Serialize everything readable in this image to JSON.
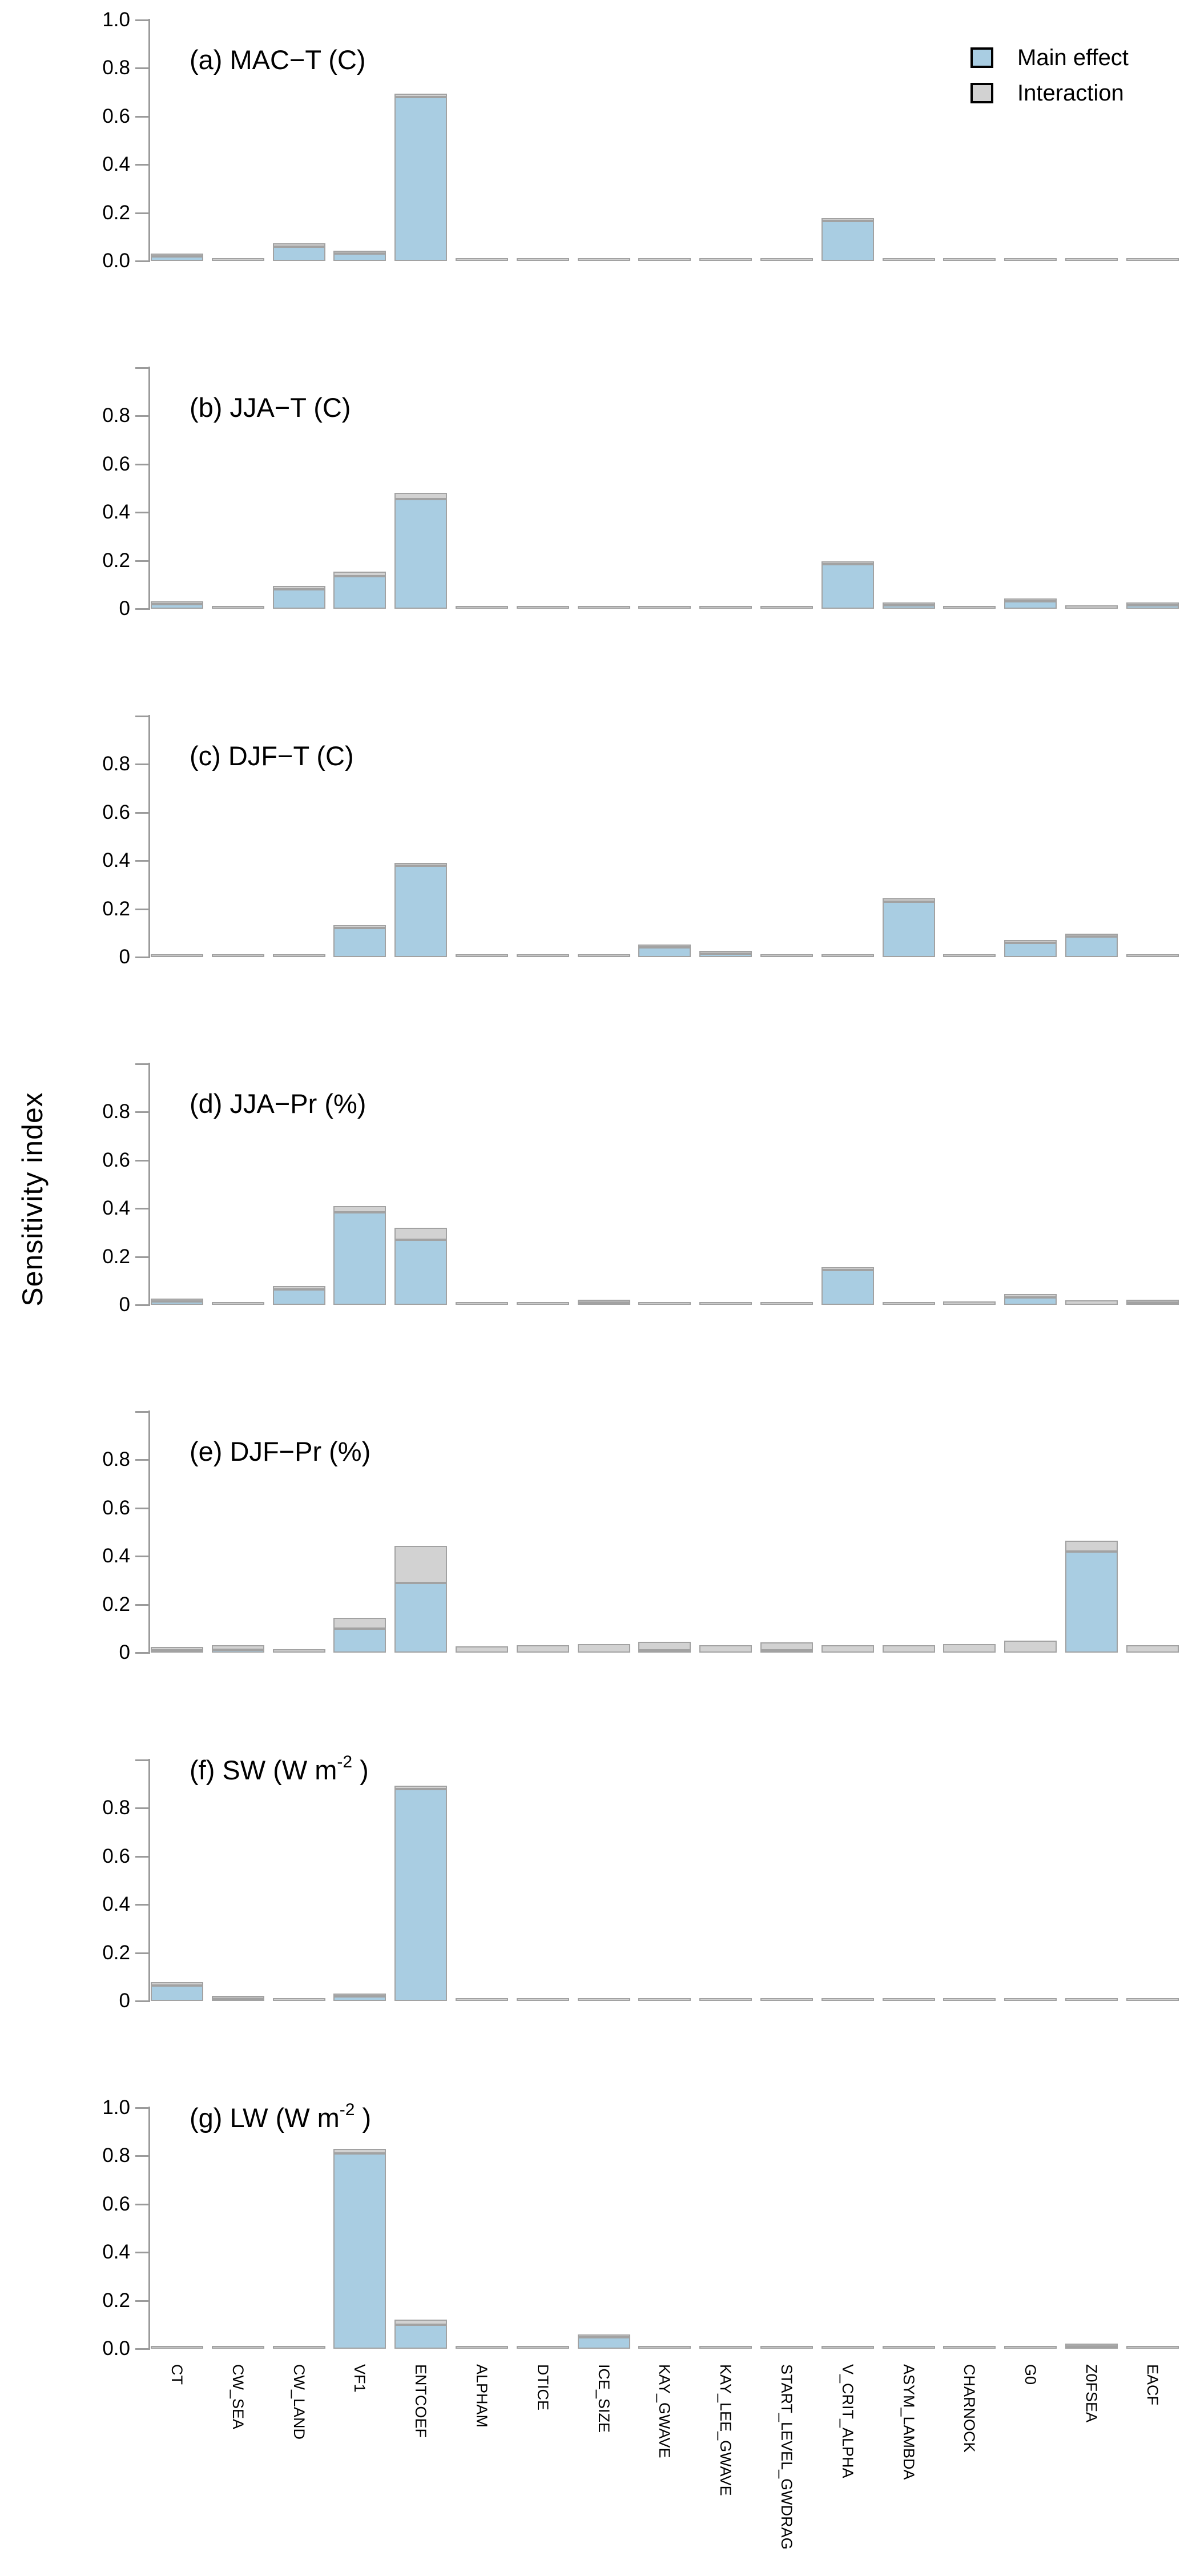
{
  "figure": {
    "y_axis_label": "Sensitivity index",
    "legend": [
      {
        "label": "Main effect",
        "color": "#a9cde2"
      },
      {
        "label": "Interaction",
        "color": "#d2d2d2"
      }
    ],
    "colors": {
      "main": "#a9cde2",
      "interaction": "#d2d2d2",
      "bar_border": "#a2a2a2",
      "axis": "#9b9b9b",
      "text": "#000000",
      "background": "#ffffff"
    }
  },
  "chart_data": {
    "type": "bar",
    "stacked": true,
    "grid": false,
    "legend_position": "top-right",
    "ylabel": "Sensitivity index",
    "series_names": [
      "Main effect",
      "Interaction"
    ],
    "categories": [
      "CT",
      "CW_SEA",
      "CW_LAND",
      "VF1",
      "ENTCOEF",
      "ALPHAM",
      "DTICE",
      "ICE_SIZE",
      "KAY_GWAVE",
      "KAY_LEE_GWAVE",
      "START_LEVEL_GWDRAG",
      "V_CRIT_ALPHA",
      "ASYM_LAMBDA",
      "CHARNOCK",
      "G0",
      "Z0FSEA",
      "EACF"
    ],
    "ylim": [
      0,
      1.0
    ],
    "tick_values": [
      0,
      0.2,
      0.4,
      0.6,
      0.8,
      1.0
    ],
    "panels": [
      {
        "id": "a",
        "title_pre": "(a) MAC−T (C)",
        "title_sup": "",
        "title_post": "",
        "title_high": false,
        "y_tick_labels": [
          "0.0",
          "0.2",
          "0.4",
          "0.6",
          "0.8",
          "1.0"
        ],
        "main": [
          0.02,
          0,
          0.06,
          0.03,
          0.68,
          0,
          0,
          0,
          0,
          0,
          0,
          0.165,
          0,
          0,
          0,
          0,
          0
        ],
        "interaction": [
          0.01,
          0.005,
          0.015,
          0.01,
          0.015,
          0.005,
          0.005,
          0.005,
          0.008,
          0.005,
          0.005,
          0.012,
          0.01,
          0.005,
          0.01,
          0.005,
          0.012
        ]
      },
      {
        "id": "b",
        "title_pre": "(b) JJA−T (C)",
        "title_sup": "",
        "title_post": "",
        "title_high": false,
        "y_tick_labels": [
          "0",
          "0.2",
          "0.4",
          "0.6",
          "0.8"
        ],
        "main": [
          0.02,
          0,
          0.08,
          0.135,
          0.455,
          0,
          0,
          0,
          0,
          0,
          0,
          0.185,
          0.015,
          0,
          0.03,
          0,
          0.015
        ],
        "interaction": [
          0.008,
          0.01,
          0.015,
          0.02,
          0.025,
          0.005,
          0.005,
          0.006,
          0.008,
          0.006,
          0.006,
          0.012,
          0.01,
          0.01,
          0.012,
          0.015,
          0.01
        ]
      },
      {
        "id": "c",
        "title_pre": "(c) DJF−T (C)",
        "title_sup": "",
        "title_post": "",
        "title_high": false,
        "y_tick_labels": [
          "0",
          "0.2",
          "0.4",
          "0.6",
          "0.8"
        ],
        "main": [
          0,
          0,
          0,
          0.12,
          0.38,
          0,
          0,
          0,
          0.04,
          0.015,
          0,
          0,
          0.23,
          0,
          0.06,
          0.085,
          0
        ],
        "interaction": [
          0.01,
          0.008,
          0.01,
          0.012,
          0.012,
          0.008,
          0.008,
          0.008,
          0.012,
          0.01,
          0.008,
          0.012,
          0.015,
          0.01,
          0.012,
          0.012,
          0.008
        ]
      },
      {
        "id": "d",
        "title_pre": "(d) JJA−Pr (%)",
        "title_sup": "",
        "title_post": "",
        "title_high": false,
        "y_tick_labels": [
          "0",
          "0.2",
          "0.4",
          "0.6",
          "0.8"
        ],
        "main": [
          0.015,
          0,
          0.065,
          0.385,
          0.27,
          0,
          0,
          0.01,
          0,
          0,
          0,
          0.145,
          0,
          0,
          0.03,
          0,
          0.008
        ],
        "interaction": [
          0.01,
          0.008,
          0.015,
          0.025,
          0.05,
          0.008,
          0.008,
          0.01,
          0.012,
          0.008,
          0.01,
          0.012,
          0.01,
          0.015,
          0.015,
          0.02,
          0.012
        ]
      },
      {
        "id": "e",
        "title_pre": "(e) DJF−Pr (%)",
        "title_sup": "",
        "title_post": "",
        "title_high": false,
        "y_tick_labels": [
          "0",
          "0.2",
          "0.4",
          "0.6",
          "0.8"
        ],
        "main": [
          0.01,
          0.012,
          0,
          0.1,
          0.29,
          0,
          0,
          0,
          0.01,
          0,
          0.008,
          0,
          0,
          0,
          0,
          0.42,
          0
        ],
        "interaction": [
          0.015,
          0.018,
          0.015,
          0.045,
          0.155,
          0.025,
          0.03,
          0.035,
          0.035,
          0.03,
          0.032,
          0.03,
          0.03,
          0.035,
          0.05,
          0.045,
          0.03
        ]
      },
      {
        "id": "f",
        "title_pre": "(f) SW (W m",
        "title_sup": "-2",
        "title_post": " )",
        "title_high": true,
        "y_tick_labels": [
          "0",
          "0.2",
          "0.4",
          "0.6",
          "0.8"
        ],
        "main": [
          0.065,
          0.01,
          0,
          0.018,
          0.88,
          0,
          0,
          0,
          0,
          0,
          0,
          0,
          0,
          0,
          0,
          0,
          0
        ],
        "interaction": [
          0.015,
          0.008,
          0.005,
          0.01,
          0.015,
          0.005,
          0.004,
          0.008,
          0.005,
          0.005,
          0.005,
          0.008,
          0.008,
          0.005,
          0.01,
          0.005,
          0.01
        ]
      },
      {
        "id": "g",
        "title_pre": "(g) LW (W m",
        "title_sup": "-2",
        "title_post": " )",
        "title_high": true,
        "y_tick_labels": [
          "0.0",
          "0.2",
          "0.4",
          "0.6",
          "0.8",
          "1.0"
        ],
        "main": [
          0,
          0,
          0,
          0.81,
          0.1,
          0,
          0,
          0.048,
          0,
          0,
          0,
          0,
          0,
          0,
          0,
          0.008,
          0
        ],
        "interaction": [
          0.01,
          0.005,
          0.005,
          0.02,
          0.022,
          0.005,
          0.005,
          0.008,
          0.005,
          0.005,
          0.005,
          0.01,
          0.01,
          0.008,
          0.008,
          0.01,
          0.008
        ]
      }
    ]
  }
}
